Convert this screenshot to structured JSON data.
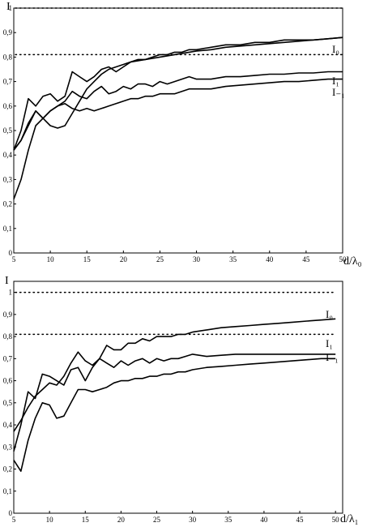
{
  "chart_data": [
    {
      "type": "line",
      "ylabel": "I",
      "xlabel": "d/λ₀",
      "xlim": [
        5,
        50
      ],
      "ylim": [
        0,
        1
      ],
      "xticks": [
        "5",
        "10",
        "15",
        "20",
        "25",
        "30",
        "35",
        "40",
        "45",
        "50"
      ],
      "yticks": [
        "0",
        "0,1",
        "0,2",
        "0,3",
        "0,4",
        "0,5",
        "0,6",
        "0,7",
        "0,8",
        "0,9",
        "1"
      ],
      "x_tick_values": [
        5,
        10,
        15,
        20,
        25,
        30,
        35,
        40,
        45,
        50
      ],
      "y_tick_values": [
        0,
        0.1,
        0.2,
        0.3,
        0.4,
        0.5,
        0.6,
        0.7,
        0.8,
        0.9,
        1
      ],
      "grid": false,
      "reference_lines": [
        {
          "y": 1.0,
          "style": "dotted"
        },
        {
          "y": 0.81,
          "style": "dotted"
        }
      ],
      "series": [
        {
          "name": "I₀",
          "x": [
            5,
            6,
            7,
            8,
            9,
            10,
            11,
            12,
            13,
            14,
            15,
            16,
            17,
            18,
            19,
            20,
            21,
            22,
            23,
            24,
            25,
            26,
            27,
            28,
            29,
            30,
            32,
            34,
            36,
            38,
            40,
            42,
            44,
            46,
            48,
            50
          ],
          "values": [
            0.42,
            0.46,
            0.53,
            0.58,
            0.55,
            0.52,
            0.51,
            0.52,
            0.57,
            0.62,
            0.67,
            0.7,
            0.73,
            0.75,
            0.76,
            0.77,
            0.78,
            0.785,
            0.79,
            0.795,
            0.8,
            0.805,
            0.81,
            0.815,
            0.82,
            0.825,
            0.83,
            0.84,
            0.845,
            0.85,
            0.855,
            0.86,
            0.865,
            0.87,
            0.875,
            0.88
          ]
        },
        {
          "name": "I₁",
          "x": [
            5,
            6,
            7,
            8,
            9,
            10,
            11,
            12,
            13,
            14,
            15,
            16,
            17,
            18,
            19,
            20,
            21,
            22,
            23,
            24,
            25,
            26,
            27,
            28,
            29,
            30,
            32,
            34,
            36,
            38,
            40,
            42,
            44,
            46,
            48,
            50
          ],
          "values": [
            0.42,
            0.5,
            0.63,
            0.6,
            0.64,
            0.65,
            0.62,
            0.64,
            0.74,
            0.72,
            0.7,
            0.72,
            0.75,
            0.76,
            0.74,
            0.76,
            0.78,
            0.79,
            0.79,
            0.8,
            0.81,
            0.81,
            0.82,
            0.82,
            0.83,
            0.83,
            0.84,
            0.85,
            0.85,
            0.86,
            0.86,
            0.87,
            0.87,
            0.87,
            0.875,
            0.88
          ]
        },
        {
          "name": "I₁",
          "x": [
            5,
            6,
            7,
            8,
            9,
            10,
            11,
            12,
            13,
            14,
            15,
            16,
            17,
            18,
            19,
            20,
            21,
            22,
            23,
            24,
            25,
            26,
            27,
            28,
            29,
            30,
            32,
            34,
            36,
            38,
            40,
            42,
            44,
            46,
            48,
            50
          ],
          "values": [
            0.42,
            0.46,
            0.52,
            0.58,
            0.55,
            0.58,
            0.6,
            0.62,
            0.66,
            0.64,
            0.63,
            0.66,
            0.68,
            0.65,
            0.66,
            0.68,
            0.67,
            0.69,
            0.69,
            0.68,
            0.7,
            0.69,
            0.7,
            0.71,
            0.72,
            0.71,
            0.71,
            0.72,
            0.72,
            0.725,
            0.73,
            0.73,
            0.735,
            0.735,
            0.74,
            0.74
          ]
        },
        {
          "name": "I₋₁",
          "x": [
            5,
            6,
            7,
            8,
            9,
            10,
            11,
            12,
            13,
            14,
            15,
            16,
            17,
            18,
            19,
            20,
            21,
            22,
            23,
            24,
            25,
            26,
            27,
            28,
            29,
            30,
            32,
            34,
            36,
            38,
            40,
            42,
            44,
            46,
            48,
            50
          ],
          "values": [
            0.22,
            0.3,
            0.42,
            0.52,
            0.55,
            0.58,
            0.6,
            0.61,
            0.59,
            0.58,
            0.59,
            0.58,
            0.59,
            0.6,
            0.61,
            0.62,
            0.63,
            0.63,
            0.64,
            0.64,
            0.65,
            0.65,
            0.65,
            0.66,
            0.67,
            0.67,
            0.67,
            0.68,
            0.685,
            0.69,
            0.695,
            0.7,
            0.7,
            0.705,
            0.71,
            0.71
          ]
        }
      ],
      "series_labels": [
        "I₀",
        "I₁",
        "I₋₁"
      ]
    },
    {
      "type": "line",
      "ylabel": "I",
      "xlabel": "d/λ₁",
      "xlim": [
        5,
        51
      ],
      "ylim": [
        0,
        1.05
      ],
      "xticks": [
        "5",
        "10",
        "15",
        "20",
        "25",
        "30",
        "35",
        "40",
        "45",
        "50"
      ],
      "yticks": [
        "0",
        "0,1",
        "0,2",
        "0,3",
        "0,4",
        "0,5",
        "0,6",
        "0,7",
        "0,8",
        "0,9",
        "1"
      ],
      "x_tick_values": [
        5,
        10,
        15,
        20,
        25,
        30,
        35,
        40,
        45,
        50
      ],
      "y_tick_values": [
        0,
        0.1,
        0.2,
        0.3,
        0.4,
        0.5,
        0.6,
        0.7,
        0.8,
        0.9,
        1
      ],
      "grid": false,
      "reference_lines": [
        {
          "y": 1.0,
          "style": "dotted"
        },
        {
          "y": 0.81,
          "style": "dotted"
        }
      ],
      "series": [
        {
          "name": "I₀",
          "x": [
            5,
            6,
            7,
            8,
            9,
            10,
            11,
            12,
            13,
            14,
            15,
            16,
            17,
            18,
            19,
            20,
            21,
            22,
            23,
            24,
            25,
            26,
            27,
            28,
            29,
            30,
            32,
            34,
            36,
            38,
            40,
            42,
            44,
            46,
            48,
            50
          ],
          "values": [
            0.37,
            0.42,
            0.48,
            0.53,
            0.56,
            0.59,
            0.58,
            0.62,
            0.68,
            0.73,
            0.69,
            0.67,
            0.7,
            0.76,
            0.74,
            0.74,
            0.77,
            0.77,
            0.79,
            0.78,
            0.8,
            0.8,
            0.8,
            0.81,
            0.81,
            0.82,
            0.83,
            0.84,
            0.845,
            0.85,
            0.855,
            0.86,
            0.865,
            0.87,
            0.875,
            0.88
          ]
        },
        {
          "name": "I₁",
          "x": [
            5,
            6,
            7,
            8,
            9,
            10,
            11,
            12,
            13,
            14,
            15,
            16,
            17,
            18,
            19,
            20,
            21,
            22,
            23,
            24,
            25,
            26,
            27,
            28,
            29,
            30,
            32,
            34,
            36,
            38,
            40,
            42,
            44,
            46,
            48,
            50
          ],
          "values": [
            0.28,
            0.4,
            0.55,
            0.52,
            0.63,
            0.62,
            0.6,
            0.58,
            0.65,
            0.66,
            0.6,
            0.66,
            0.7,
            0.68,
            0.66,
            0.69,
            0.67,
            0.69,
            0.7,
            0.68,
            0.7,
            0.69,
            0.7,
            0.7,
            0.71,
            0.72,
            0.71,
            0.715,
            0.72,
            0.72,
            0.72,
            0.72,
            0.72,
            0.72,
            0.72,
            0.72
          ]
        },
        {
          "name": "I₋₁",
          "x": [
            5,
            6,
            7,
            8,
            9,
            10,
            11,
            12,
            13,
            14,
            15,
            16,
            17,
            18,
            19,
            20,
            21,
            22,
            23,
            24,
            25,
            26,
            27,
            28,
            29,
            30,
            32,
            34,
            36,
            38,
            40,
            42,
            44,
            46,
            48,
            50
          ],
          "values": [
            0.24,
            0.19,
            0.33,
            0.43,
            0.5,
            0.49,
            0.43,
            0.44,
            0.5,
            0.56,
            0.56,
            0.55,
            0.56,
            0.57,
            0.59,
            0.6,
            0.6,
            0.61,
            0.61,
            0.62,
            0.62,
            0.63,
            0.63,
            0.64,
            0.64,
            0.65,
            0.66,
            0.665,
            0.67,
            0.675,
            0.68,
            0.685,
            0.69,
            0.695,
            0.7,
            0.7
          ]
        }
      ],
      "series_labels": [
        "I₀",
        "I₁",
        "I₋₁"
      ]
    }
  ]
}
